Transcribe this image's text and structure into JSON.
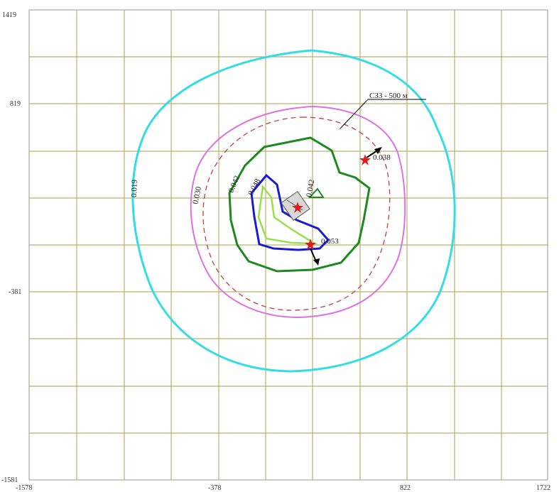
{
  "axes": {
    "x_ticks": [
      "-1578",
      "-378",
      "822",
      "1722"
    ],
    "y_ticks": [
      "1419",
      "819",
      "-381",
      "-1581"
    ]
  },
  "contours": {
    "outer": "0.019",
    "second": "0.030",
    "third": "0.042",
    "fourth": "0.048",
    "inner": "0.042"
  },
  "points": {
    "source_ne": "0.038",
    "source_s": "0.053"
  },
  "zone_label": "СЗЗ - 500 м",
  "colors": {
    "grid": "#b8b070",
    "outer": "#33dde2",
    "second": "#e070e0",
    "zone": "#c04040",
    "third": "#1e8a1e",
    "fourth": "#1a1ad6",
    "innermost": "#9ae04a",
    "marker": "#e21c1c"
  }
}
